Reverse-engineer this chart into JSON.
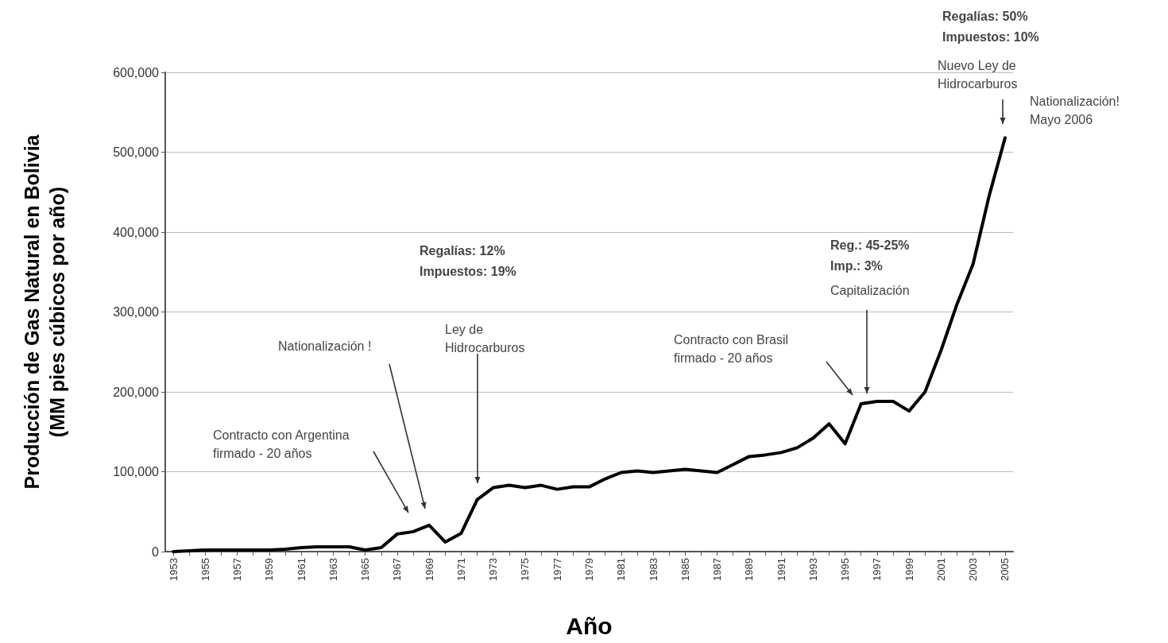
{
  "chart_data": {
    "type": "line",
    "xlabel": "Año",
    "ylabel": "Producción de Gas Natural en Bolivia\n(MM pies cúbicos por año)",
    "categories": [
      "1953",
      null,
      "1955",
      null,
      "1957",
      null,
      "1959",
      null,
      "1961",
      null,
      "1963",
      null,
      "1965",
      null,
      "1967",
      null,
      "1969",
      null,
      "1971",
      null,
      "1973",
      null,
      "1975",
      null,
      "1977",
      null,
      "1979",
      null,
      "1981",
      null,
      "1983",
      null,
      "1985",
      null,
      "1987",
      null,
      "1989",
      null,
      "1991",
      null,
      "1993",
      null,
      "1995",
      null,
      "1997",
      null,
      "1999",
      null,
      "2001",
      null,
      "2003",
      null,
      "2005"
    ],
    "series": [
      {
        "color": "#000000",
        "values": [
          0,
          1000,
          2000,
          2000,
          2000,
          2000,
          2000,
          3000,
          5000,
          6000,
          6000,
          6000,
          2000,
          5000,
          22000,
          25000,
          33000,
          12000,
          23000,
          65000,
          80000,
          83000,
          80000,
          83000,
          78000,
          81000,
          81000,
          91000,
          99000,
          101000,
          99000,
          101000,
          103000,
          101000,
          99000,
          109000,
          119000,
          121000,
          124000,
          130000,
          142000,
          160000,
          135000,
          185000,
          188000,
          188000,
          176000,
          200000,
          252000,
          310000,
          360000,
          445000,
          518000
        ]
      }
    ],
    "ylim": [
      0,
      600000
    ],
    "yticks": [
      0,
      {
        "value": 100000,
        "label": "100,000"
      },
      {
        "value": 200000,
        "label": "200,000"
      },
      {
        "value": 300000,
        "label": "300,000"
      },
      {
        "value": 400000,
        "label": "400,000"
      },
      {
        "value": 500000,
        "label": "500,000"
      },
      {
        "value": 600000,
        "label": "600,000"
      }
    ],
    "grid": "y",
    "marker": "none",
    "line_style": "solid",
    "annotations": [
      "Contracto con Argentina\nfirmado - 20 años",
      "Nationalización !",
      "Regalías: 12%\nImpuestos: 19%",
      "Ley de\nHidrocarburos",
      "Contracto con Brasil\nfirmado - 20 años",
      "Reg.: 45-25%\nImp.: 3%",
      "Capitalización",
      "Regalías: 50%\nImpuestos: 10%",
      "Nuevo Ley de\nHidrocarburos",
      "Nationalización!\nMayo 2006"
    ]
  }
}
